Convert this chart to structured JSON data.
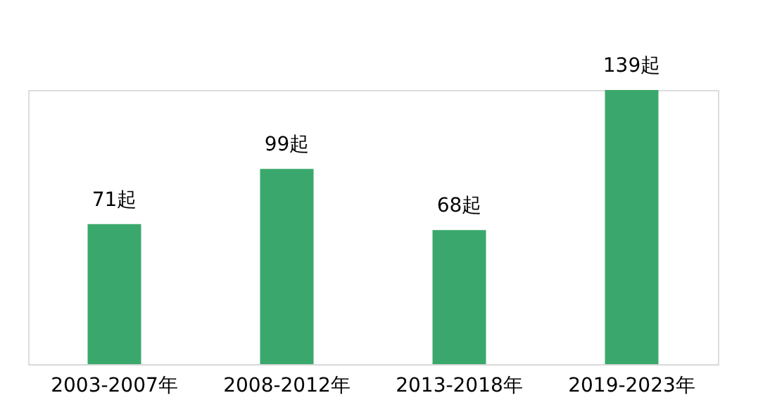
{
  "chart_data": {
    "type": "bar",
    "categories": [
      "2003-2007年",
      "2008-2012年",
      "2013-2018年",
      "2019-2023年"
    ],
    "values": [
      71,
      99,
      68,
      139
    ],
    "value_labels": [
      "71起",
      "99起",
      "68起",
      "139起"
    ],
    "color": "#3aa86c",
    "grid": false
  }
}
